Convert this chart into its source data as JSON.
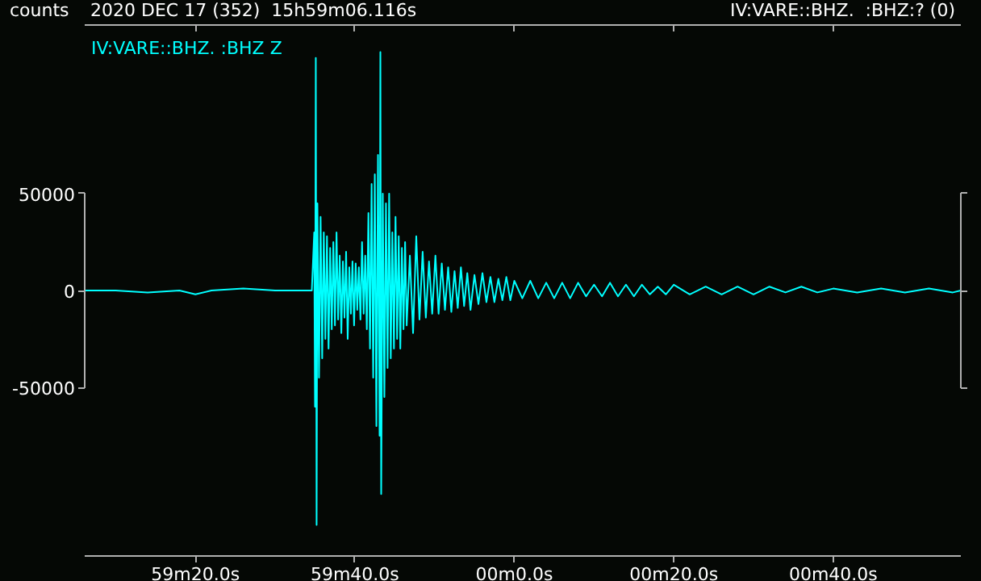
{
  "chart_data": {
    "type": "line",
    "title": "2020 DEC 17 (352)  15h59m06.116s",
    "ylabel": "counts",
    "annotations": [
      "IV:VARE::BHZ.  :BHZ:? (0)"
    ],
    "xlim": [
      "2020-12-17T15:59:06.116",
      "2020-12-17T16:00:56"
    ],
    "ylim": [
      -137000,
      137000
    ],
    "xticks": [
      {
        "value": "2020-12-17T15:59:20",
        "label": "59m20.0s"
      },
      {
        "value": "2020-12-17T15:59:40",
        "label": "59m40.0s"
      },
      {
        "value": "2020-12-17T16:00:00",
        "label": "00m0.0s"
      },
      {
        "value": "2020-12-17T16:00:20",
        "label": "00m20.0s"
      },
      {
        "value": "2020-12-17T16:00:40",
        "label": "00m40.0s"
      }
    ],
    "yticks": [
      -50000,
      0,
      50000
    ],
    "grid": false,
    "marker": "none",
    "line_style": "solid",
    "series": [
      {
        "name": "IV:VARE::BHZ.  :BHZ Z",
        "color": "#00ffff",
        "x": [
          "2020-12-17T15:59:06.2",
          "2020-12-17T15:59:10",
          "2020-12-17T15:59:14",
          "2020-12-17T15:59:18",
          "2020-12-17T15:59:20",
          "2020-12-17T15:59:22",
          "2020-12-17T15:59:26",
          "2020-12-17T15:59:30",
          "2020-12-17T15:59:33",
          "2020-12-17T15:59:34.6",
          "2020-12-17T15:59:34.9",
          "2020-12-17T15:59:35.0",
          "2020-12-17T15:59:35.1",
          "2020-12-17T15:59:35.2",
          "2020-12-17T15:59:35.3",
          "2020-12-17T15:59:35.5",
          "2020-12-17T15:59:35.7",
          "2020-12-17T15:59:35.9",
          "2020-12-17T15:59:36.1",
          "2020-12-17T15:59:36.3",
          "2020-12-17T15:59:36.5",
          "2020-12-17T15:59:36.7",
          "2020-12-17T15:59:36.9",
          "2020-12-17T15:59:37.1",
          "2020-12-17T15:59:37.3",
          "2020-12-17T15:59:37.5",
          "2020-12-17T15:59:37.7",
          "2020-12-17T15:59:37.9",
          "2020-12-17T15:59:38.1",
          "2020-12-17T15:59:38.3",
          "2020-12-17T15:59:38.5",
          "2020-12-17T15:59:38.7",
          "2020-12-17T15:59:38.9",
          "2020-12-17T15:59:39.1",
          "2020-12-17T15:59:39.3",
          "2020-12-17T15:59:39.5",
          "2020-12-17T15:59:39.7",
          "2020-12-17T15:59:39.9",
          "2020-12-17T15:59:40.1",
          "2020-12-17T15:59:40.3",
          "2020-12-17T15:59:40.5",
          "2020-12-17T15:59:40.7",
          "2020-12-17T15:59:40.9",
          "2020-12-17T15:59:41.1",
          "2020-12-17T15:59:41.3",
          "2020-12-17T15:59:41.5",
          "2020-12-17T15:59:41.7",
          "2020-12-17T15:59:41.9",
          "2020-12-17T15:59:42.1",
          "2020-12-17T15:59:42.3",
          "2020-12-17T15:59:42.5",
          "2020-12-17T15:59:42.7",
          "2020-12-17T15:59:42.9",
          "2020-12-17T15:59:43.1",
          "2020-12-17T15:59:43.2",
          "2020-12-17T15:59:43.3",
          "2020-12-17T15:59:43.5",
          "2020-12-17T15:59:43.7",
          "2020-12-17T15:59:43.9",
          "2020-12-17T15:59:44.1",
          "2020-12-17T15:59:44.3",
          "2020-12-17T15:59:44.5",
          "2020-12-17T15:59:44.7",
          "2020-12-17T15:59:44.9",
          "2020-12-17T15:59:45.1",
          "2020-12-17T15:59:45.3",
          "2020-12-17T15:59:45.5",
          "2020-12-17T15:59:45.7",
          "2020-12-17T15:59:45.9",
          "2020-12-17T15:59:46.1",
          "2020-12-17T15:59:46.3",
          "2020-12-17T15:59:46.5",
          "2020-12-17T15:59:46.9",
          "2020-12-17T15:59:47.3",
          "2020-12-17T15:59:47.7",
          "2020-12-17T15:59:48.1",
          "2020-12-17T15:59:48.5",
          "2020-12-17T15:59:48.9",
          "2020-12-17T15:59:49.3",
          "2020-12-17T15:59:49.7",
          "2020-12-17T15:59:50.1",
          "2020-12-17T15:59:50.5",
          "2020-12-17T15:59:50.9",
          "2020-12-17T15:59:51.3",
          "2020-12-17T15:59:51.7",
          "2020-12-17T15:59:52.1",
          "2020-12-17T15:59:52.5",
          "2020-12-17T15:59:52.9",
          "2020-12-17T15:59:53.3",
          "2020-12-17T15:59:53.7",
          "2020-12-17T15:59:54.1",
          "2020-12-17T15:59:54.5",
          "2020-12-17T15:59:55",
          "2020-12-17T15:59:55.5",
          "2020-12-17T15:59:56",
          "2020-12-17T15:59:56.5",
          "2020-12-17T15:59:57",
          "2020-12-17T15:59:57.5",
          "2020-12-17T15:59:58",
          "2020-12-17T15:59:58.5",
          "2020-12-17T15:59:59",
          "2020-12-17T15:59:59.5",
          "2020-12-17T16:00:00",
          "2020-12-17T16:00:01",
          "2020-12-17T16:00:02",
          "2020-12-17T16:00:03",
          "2020-12-17T16:00:04",
          "2020-12-17T16:00:05",
          "2020-12-17T16:00:06",
          "2020-12-17T16:00:07",
          "2020-12-17T16:00:08",
          "2020-12-17T16:00:09",
          "2020-12-17T16:00:10",
          "2020-12-17T16:00:11",
          "2020-12-17T16:00:12",
          "2020-12-17T16:00:13",
          "2020-12-17T16:00:14",
          "2020-12-17T16:00:15",
          "2020-12-17T16:00:16",
          "2020-12-17T16:00:17",
          "2020-12-17T16:00:18",
          "2020-12-17T16:00:19",
          "2020-12-17T16:00:20",
          "2020-12-17T16:00:22",
          "2020-12-17T16:00:24",
          "2020-12-17T16:00:26",
          "2020-12-17T16:00:28",
          "2020-12-17T16:00:30",
          "2020-12-17T16:00:32",
          "2020-12-17T16:00:34",
          "2020-12-17T16:00:36",
          "2020-12-17T16:00:38",
          "2020-12-17T16:00:40",
          "2020-12-17T16:00:43",
          "2020-12-17T16:00:46",
          "2020-12-17T16:00:49",
          "2020-12-17T16:00:52",
          "2020-12-17T16:00:55",
          "2020-12-17T16:00:56"
        ],
        "values": [
          0,
          0,
          -1000,
          0,
          -2000,
          0,
          1000,
          0,
          0,
          0,
          30000,
          -60000,
          120000,
          -121000,
          45000,
          -45000,
          38000,
          -35000,
          30000,
          -25000,
          28000,
          -30000,
          22000,
          -20000,
          25000,
          -18000,
          30000,
          -15000,
          18000,
          -22000,
          15000,
          -14000,
          20000,
          -25000,
          12000,
          -12000,
          15000,
          -18000,
          14000,
          -10000,
          12000,
          -15000,
          25000,
          -12000,
          18000,
          -20000,
          40000,
          -30000,
          55000,
          -45000,
          60000,
          -70000,
          70000,
          -75000,
          123000,
          -105000,
          50000,
          -55000,
          45000,
          -40000,
          50000,
          -35000,
          30000,
          -30000,
          38000,
          -25000,
          28000,
          -30000,
          22000,
          -20000,
          25000,
          -18000,
          18000,
          -22000,
          28000,
          -15000,
          20000,
          -14000,
          15000,
          -12000,
          18000,
          -12000,
          14000,
          -10000,
          12000,
          -11000,
          10000,
          -9000,
          12000,
          -8000,
          9000,
          -10000,
          8000,
          -7000,
          9000,
          -6000,
          7000,
          -6000,
          6000,
          -5000,
          7000,
          -5000,
          5000,
          -4000,
          5000,
          -4000,
          4000,
          -4000,
          4000,
          -4000,
          4000,
          -3000,
          3000,
          -3000,
          4000,
          -3000,
          3000,
          -3000,
          3000,
          -2000,
          2000,
          -2000,
          3000,
          -2000,
          2000,
          -2000,
          2000,
          -2000,
          2000,
          -1000,
          2000,
          -1000,
          1000,
          -1000,
          1000,
          -1000,
          1000,
          -1000,
          0
        ]
      }
    ]
  }
}
